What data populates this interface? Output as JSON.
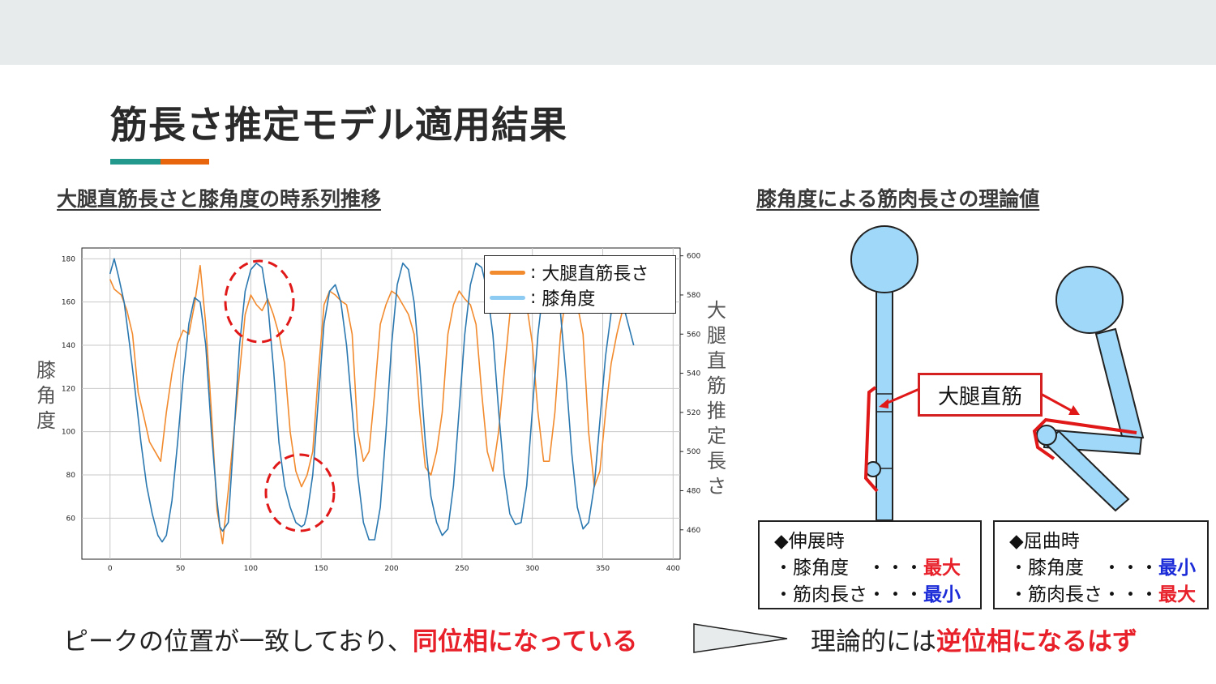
{
  "slide": {
    "title": "筋長さ推定モデル適用結果",
    "left_subtitle": "大腿直筋長さと膝角度の時系列推移",
    "right_subtitle": "膝角度による筋肉長さの理論値"
  },
  "chart_data": {
    "type": "line",
    "title": "",
    "xlabel": "",
    "ylabel": "膝角度",
    "y2label": "大腿直筋推定長さ",
    "xlim": [
      -20,
      405
    ],
    "ylim": [
      41,
      185
    ],
    "y2lim": [
      445,
      604
    ],
    "xticks": [
      0,
      50,
      100,
      150,
      200,
      250,
      300,
      350,
      400
    ],
    "yticks": [
      60,
      80,
      100,
      120,
      140,
      160,
      180
    ],
    "y2ticks": [
      460,
      480,
      500,
      520,
      540,
      560,
      580,
      600
    ],
    "grid": true,
    "legend": "top-right",
    "series": [
      {
        "name": "大腿直筋長さ",
        "axis": "right",
        "color": "#f28a2e",
        "x": [
          0,
          3,
          8,
          12,
          16,
          20,
          24,
          28,
          32,
          36,
          40,
          44,
          48,
          52,
          56,
          60,
          64,
          68,
          72,
          76,
          80,
          84,
          88,
          92,
          96,
          100,
          104,
          108,
          112,
          116,
          120,
          124,
          128,
          132,
          136,
          140,
          144,
          148,
          152,
          156,
          160,
          164,
          168,
          172,
          176,
          180,
          184,
          188,
          192,
          196,
          200,
          204,
          208,
          212,
          216,
          220,
          224,
          228,
          232,
          236,
          240,
          244,
          248,
          252,
          256,
          260,
          264,
          268,
          272,
          276,
          280,
          284,
          288,
          292,
          296,
          300,
          304,
          308,
          312,
          316,
          320,
          324,
          328,
          332,
          336,
          340,
          344,
          348,
          352,
          356,
          360,
          364,
          368,
          372
        ],
        "y": [
          588,
          583,
          580,
          572,
          560,
          530,
          518,
          505,
          500,
          495,
          520,
          540,
          555,
          562,
          560,
          575,
          595,
          565,
          520,
          470,
          453,
          480,
          510,
          540,
          570,
          580,
          575,
          572,
          578,
          570,
          560,
          545,
          510,
          490,
          482,
          488,
          500,
          540,
          575,
          582,
          580,
          577,
          575,
          560,
          510,
          495,
          500,
          530,
          565,
          575,
          582,
          580,
          575,
          570,
          560,
          520,
          492,
          488,
          500,
          520,
          560,
          575,
          582,
          578,
          575,
          565,
          530,
          500,
          490,
          510,
          540,
          570,
          582,
          580,
          575,
          555,
          520,
          495,
          495,
          520,
          560,
          580,
          582,
          575,
          560,
          510,
          482,
          490,
          520,
          545,
          560,
          572,
          575,
          576
        ]
      },
      {
        "name": "膝角度",
        "axis": "left",
        "color": "#2b78b0",
        "x": [
          0,
          3,
          6,
          10,
          14,
          18,
          22,
          26,
          30,
          34,
          37,
          40,
          44,
          48,
          52,
          56,
          60,
          64,
          68,
          72,
          76,
          78,
          80,
          84,
          88,
          92,
          96,
          100,
          104,
          108,
          112,
          116,
          120,
          124,
          128,
          132,
          136,
          138,
          140,
          144,
          148,
          152,
          156,
          160,
          164,
          168,
          172,
          176,
          180,
          184,
          188,
          192,
          196,
          200,
          204,
          208,
          212,
          216,
          220,
          224,
          228,
          232,
          236,
          240,
          244,
          248,
          252,
          256,
          260,
          264,
          268,
          272,
          276,
          280,
          284,
          288,
          292,
          296,
          300,
          304,
          308,
          312,
          316,
          320,
          324,
          328,
          332,
          336,
          340,
          344,
          348,
          352,
          356,
          360,
          364,
          368,
          372
        ],
        "y": [
          173,
          180,
          172,
          160,
          140,
          118,
          95,
          75,
          62,
          52,
          49,
          52,
          68,
          95,
          125,
          150,
          162,
          160,
          140,
          100,
          68,
          56,
          54,
          58,
          98,
          140,
          165,
          175,
          178,
          176,
          160,
          130,
          95,
          75,
          65,
          58,
          56,
          57,
          62,
          80,
          115,
          150,
          165,
          168,
          160,
          140,
          110,
          80,
          58,
          50,
          50,
          65,
          100,
          140,
          168,
          178,
          175,
          160,
          130,
          95,
          70,
          58,
          52,
          55,
          75,
          110,
          145,
          168,
          178,
          176,
          165,
          145,
          110,
          80,
          62,
          57,
          58,
          75,
          110,
          145,
          168,
          175,
          172,
          155,
          125,
          90,
          65,
          55,
          58,
          75,
          105,
          135,
          155,
          165,
          160,
          150,
          140
        ]
      }
    ]
  },
  "chart_text": {
    "left_axis_label": "膝角度",
    "right_axis_label": "大腿直筋推定長さ"
  },
  "diagram": {
    "muscle_label": "大腿直筋",
    "extension_box": {
      "heading": "◆伸展時",
      "row1_label": "・膝角度　・・・",
      "row1_value": "最大",
      "row2_label": "・筋肉長さ・・・",
      "row2_value": "最小"
    },
    "flexion_box": {
      "heading": "◆屈曲時",
      "row1_label": "・膝角度　・・・",
      "row1_value": "最小",
      "row2_label": "・筋肉長さ・・・",
      "row2_value": "最大"
    }
  },
  "conclusion": {
    "left_text": "ピークの位置が一致しており、",
    "left_highlight": "同位相になっている",
    "right_text": "理論的には",
    "right_highlight": "逆位相になるはず"
  },
  "colors": {
    "accent_teal": "#23998e",
    "accent_orange": "#e8650e",
    "highlight_red": "#e8202a",
    "highlight_blue": "#1b2bd8",
    "limb_blue": "#9fd8f8"
  }
}
